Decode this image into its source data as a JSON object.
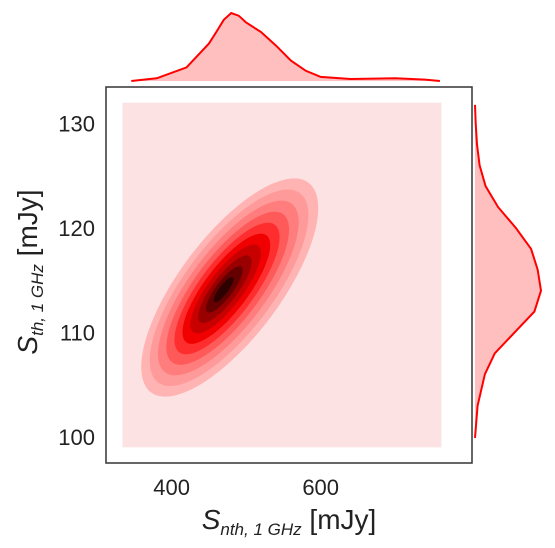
{
  "chart_data": {
    "type": "kde-joint",
    "colors": {
      "kde": "#ff0000",
      "fill": "#ffb3b3",
      "background": "#fde2e3",
      "frame": "#333333"
    },
    "xlabel": {
      "main": "S",
      "sub": "nth, 1 GHz",
      "unit": " [mJy]"
    },
    "ylabel": {
      "main": "S",
      "sub": "th, 1 GHz",
      "unit": " [mJy]"
    },
    "xlim": [
      312,
      803
    ],
    "ylim": [
      97.5,
      133.5
    ],
    "xticks": [
      {
        "v": 400,
        "label": "400"
      },
      {
        "v": 600,
        "label": "600"
      }
    ],
    "yticks": [
      {
        "v": 100,
        "label": "100"
      },
      {
        "v": 110,
        "label": "110"
      },
      {
        "v": 120,
        "label": "120"
      },
      {
        "v": 130,
        "label": "130"
      }
    ],
    "joint": {
      "center": [
        478,
        114.3
      ],
      "sigma_x": 45,
      "sigma_y": 4.1,
      "correlation": 0.85,
      "levels": 10,
      "support_x": [
        334,
        762
      ],
      "support_y": [
        99,
        132
      ]
    },
    "marginal_x": {
      "x": [
        346,
        380,
        420,
        450,
        460,
        470,
        480,
        490,
        500,
        520,
        540,
        560,
        580,
        600,
        640,
        700,
        740,
        760
      ],
      "density": [
        0.0,
        0.04,
        0.2,
        0.55,
        0.72,
        0.9,
        1.0,
        0.96,
        0.86,
        0.72,
        0.52,
        0.3,
        0.15,
        0.06,
        0.03,
        0.04,
        0.02,
        0.0
      ]
    },
    "marginal_y": {
      "y": [
        99.9,
        103,
        106,
        108,
        110,
        112,
        114,
        116,
        118,
        120,
        122,
        124,
        126,
        128,
        130,
        131.8
      ],
      "density": [
        0.0,
        0.04,
        0.15,
        0.3,
        0.6,
        0.9,
        1.0,
        0.95,
        0.85,
        0.62,
        0.35,
        0.16,
        0.07,
        0.03,
        0.01,
        0.0
      ]
    }
  }
}
